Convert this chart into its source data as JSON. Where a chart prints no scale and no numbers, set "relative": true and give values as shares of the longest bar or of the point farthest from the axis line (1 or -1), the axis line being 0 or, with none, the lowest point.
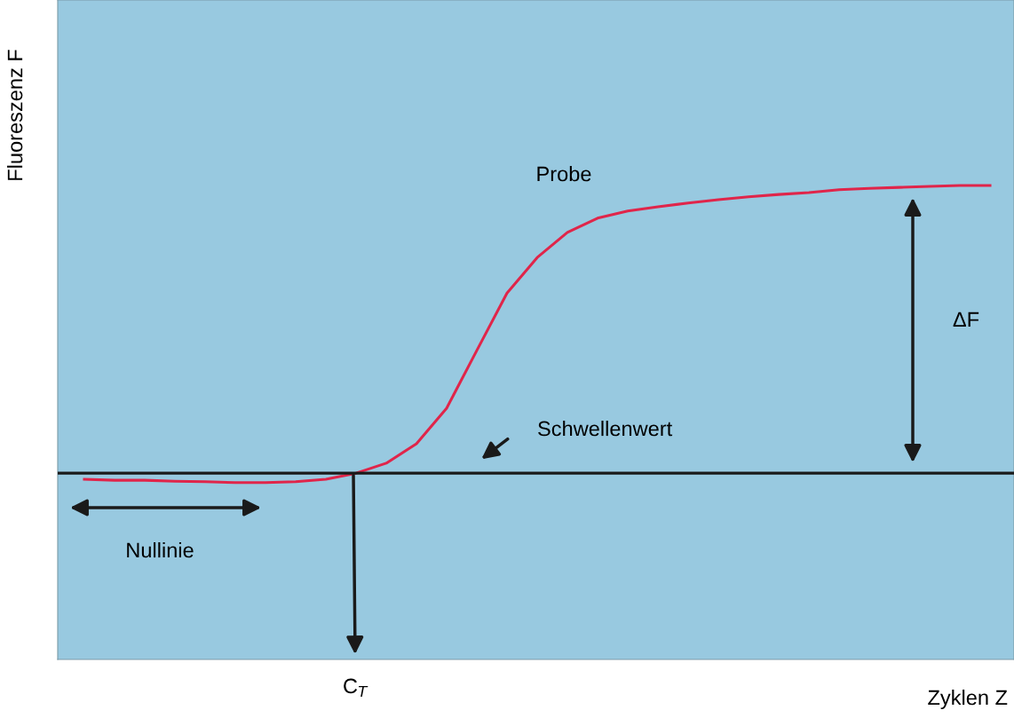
{
  "chart_data": {
    "type": "line",
    "relative": true,
    "xlabel": "Zyklen Z",
    "ylabel": "Fluoreszenz F",
    "categories": [
      null,
      null,
      null,
      null,
      null,
      null,
      null,
      null,
      null,
      null,
      null,
      null,
      null,
      null,
      null,
      null,
      null,
      null,
      null,
      null,
      null,
      null,
      null,
      null,
      null,
      null,
      null,
      null,
      null,
      null,
      null
    ],
    "series": [
      {
        "color": "#e0254a",
        "values": [
          0.38,
          0.378,
          0.378,
          0.376,
          0.375,
          0.373,
          0.373,
          0.375,
          0.38,
          0.393,
          0.414,
          0.455,
          0.53,
          0.652,
          0.773,
          0.848,
          0.901,
          0.931,
          0.946,
          0.955,
          0.963,
          0.97,
          0.976,
          0.981,
          0.985,
          0.991,
          0.994,
          0.996,
          0.998,
          1,
          1
        ]
      }
    ],
    "ref_lines": [
      {
        "axis": "y",
        "value": 0.393,
        "label": "Schwellenwert",
        "color": "#1a1a1a"
      }
    ],
    "annotations": [
      "Probe",
      "ΔF",
      "Nullinie",
      "C$_{T}$"
    ]
  }
}
